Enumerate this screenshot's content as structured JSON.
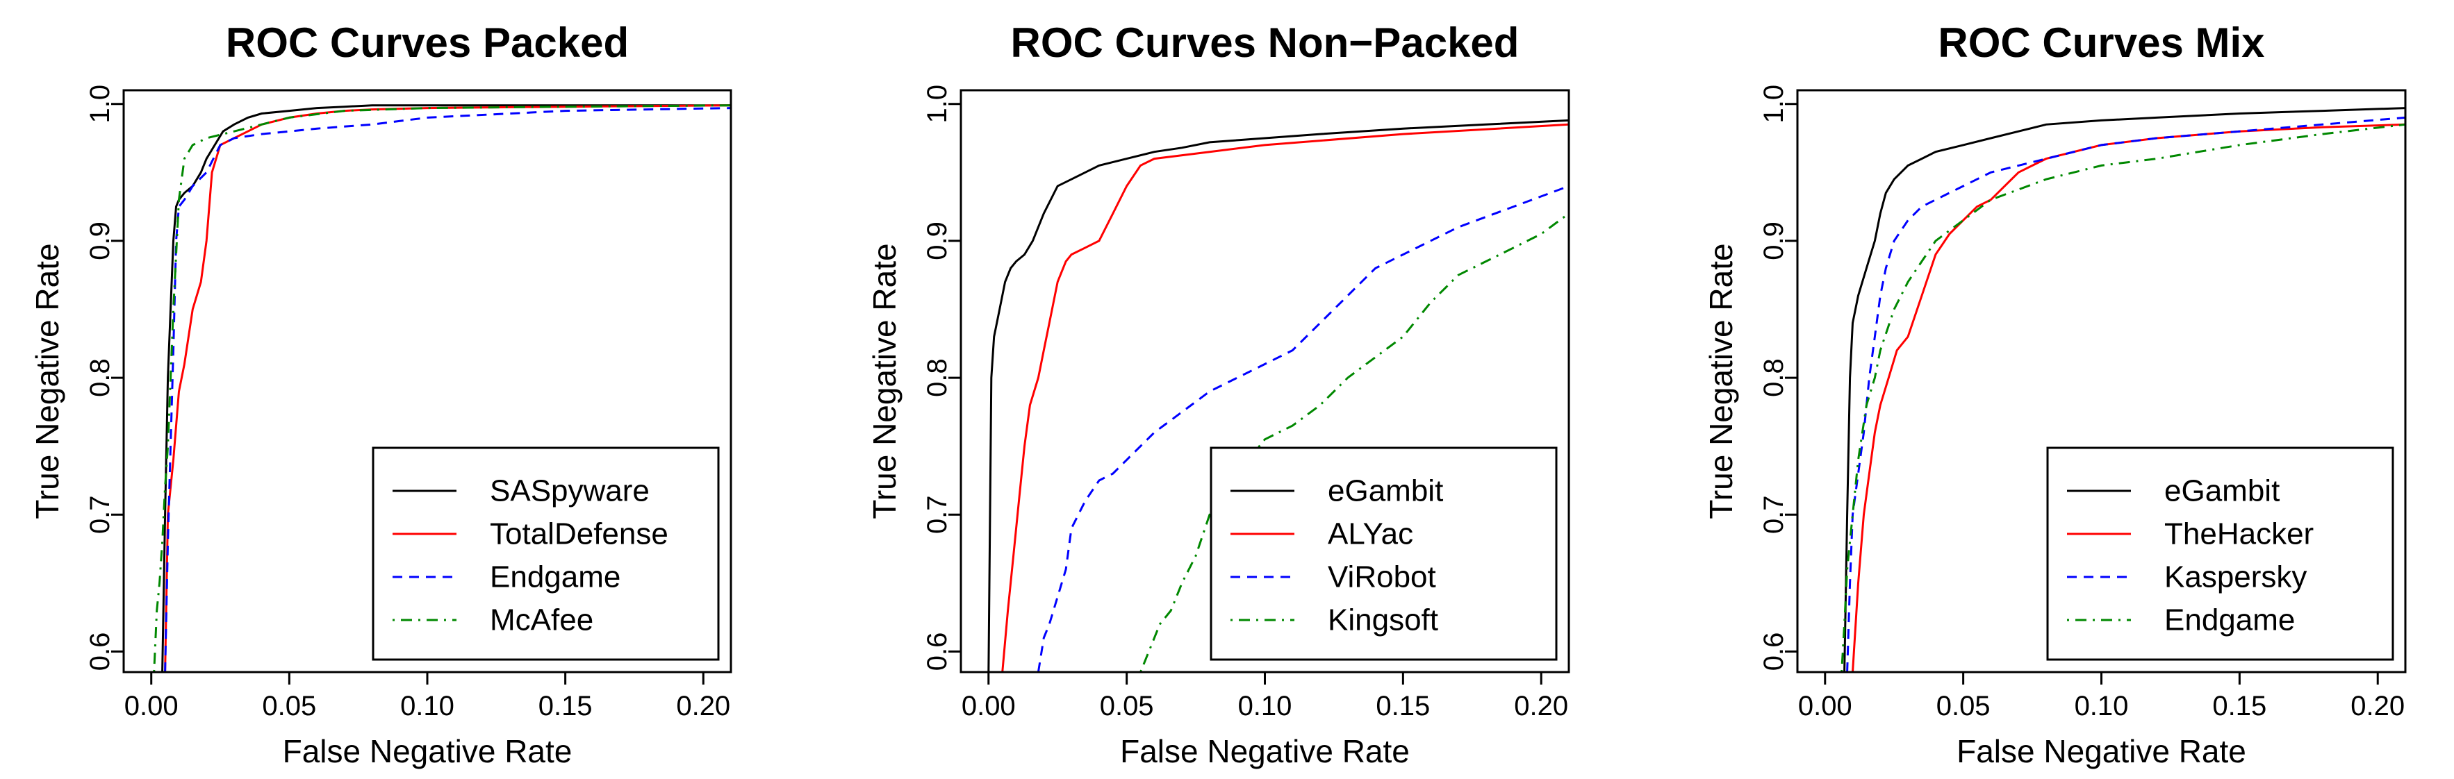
{
  "chart_data": [
    {
      "type": "line",
      "title": "ROC Curves Packed",
      "xlabel": "False Negative Rate",
      "ylabel": "True Negative Rate",
      "xlim": [
        -0.01,
        0.21
      ],
      "ylim": [
        0.585,
        1.01
      ],
      "xticks": [
        0.0,
        0.05,
        0.1,
        0.15,
        0.2
      ],
      "xtick_labels": [
        "0.00",
        "0.05",
        "0.10",
        "0.15",
        "0.20"
      ],
      "yticks": [
        0.6,
        0.7,
        0.8,
        0.9,
        1.0
      ],
      "ytick_labels": [
        "0.6",
        "0.7",
        "0.8",
        "0.9",
        "1.0"
      ],
      "legend_position": "bottom-right",
      "series": [
        {
          "name": "SASpyware",
          "color": "#000000",
          "dash": "solid",
          "x": [
            0.004,
            0.005,
            0.006,
            0.007,
            0.008,
            0.009,
            0.01,
            0.012,
            0.015,
            0.018,
            0.02,
            0.023,
            0.026,
            0.03,
            0.035,
            0.04,
            0.05,
            0.06,
            0.07,
            0.08,
            0.1,
            0.15,
            0.21
          ],
          "y": [
            0.585,
            0.7,
            0.8,
            0.85,
            0.9,
            0.925,
            0.93,
            0.935,
            0.94,
            0.95,
            0.96,
            0.97,
            0.98,
            0.985,
            0.99,
            0.993,
            0.995,
            0.997,
            0.998,
            0.999,
            0.999,
            0.999,
            0.999
          ]
        },
        {
          "name": "TotalDefense",
          "color": "#ff0000",
          "dash": "solid",
          "x": [
            0.005,
            0.006,
            0.008,
            0.01,
            0.012,
            0.015,
            0.018,
            0.02,
            0.022,
            0.025,
            0.03,
            0.035,
            0.04,
            0.05,
            0.06,
            0.07,
            0.08,
            0.1,
            0.15,
            0.21
          ],
          "y": [
            0.585,
            0.7,
            0.74,
            0.79,
            0.81,
            0.85,
            0.87,
            0.9,
            0.95,
            0.97,
            0.975,
            0.98,
            0.985,
            0.99,
            0.993,
            0.995,
            0.996,
            0.997,
            0.998,
            0.999
          ]
        },
        {
          "name": "Endgame",
          "color": "#0000ff",
          "dash": "dashed",
          "x": [
            0.005,
            0.006,
            0.007,
            0.008,
            0.009,
            0.01,
            0.012,
            0.015,
            0.02,
            0.025,
            0.03,
            0.04,
            0.05,
            0.06,
            0.08,
            0.1,
            0.15,
            0.21
          ],
          "y": [
            0.585,
            0.68,
            0.75,
            0.82,
            0.9,
            0.925,
            0.93,
            0.94,
            0.95,
            0.97,
            0.975,
            0.978,
            0.98,
            0.982,
            0.985,
            0.99,
            0.995,
            0.997
          ]
        },
        {
          "name": "McAfee",
          "color": "#008800",
          "dash": "dotdash",
          "x": [
            0.001,
            0.002,
            0.003,
            0.004,
            0.005,
            0.006,
            0.008,
            0.01,
            0.012,
            0.015,
            0.02,
            0.03,
            0.04,
            0.05,
            0.07,
            0.1,
            0.15,
            0.21
          ],
          "y": [
            0.585,
            0.63,
            0.65,
            0.68,
            0.72,
            0.75,
            0.85,
            0.93,
            0.96,
            0.97,
            0.975,
            0.98,
            0.985,
            0.99,
            0.995,
            0.997,
            0.998,
            0.999
          ]
        }
      ]
    },
    {
      "type": "line",
      "title": "ROC Curves Non−Packed",
      "xlabel": "False Negative Rate",
      "ylabel": "True Negative Rate",
      "xlim": [
        -0.01,
        0.21
      ],
      "ylim": [
        0.585,
        1.01
      ],
      "xticks": [
        0.0,
        0.05,
        0.1,
        0.15,
        0.2
      ],
      "xtick_labels": [
        "0.00",
        "0.05",
        "0.10",
        "0.15",
        "0.20"
      ],
      "yticks": [
        0.6,
        0.7,
        0.8,
        0.9,
        1.0
      ],
      "ytick_labels": [
        "0.6",
        "0.7",
        "0.8",
        "0.9",
        "1.0"
      ],
      "legend_position": "bottom-right",
      "series": [
        {
          "name": "eGambit",
          "color": "#000000",
          "dash": "solid",
          "x": [
            0.0,
            0.001,
            0.002,
            0.004,
            0.006,
            0.008,
            0.01,
            0.013,
            0.016,
            0.02,
            0.025,
            0.03,
            0.035,
            0.04,
            0.05,
            0.06,
            0.07,
            0.08,
            0.1,
            0.12,
            0.15,
            0.18,
            0.21
          ],
          "y": [
            0.585,
            0.8,
            0.83,
            0.85,
            0.87,
            0.88,
            0.885,
            0.89,
            0.9,
            0.92,
            0.94,
            0.945,
            0.95,
            0.955,
            0.96,
            0.965,
            0.968,
            0.972,
            0.975,
            0.978,
            0.982,
            0.985,
            0.988
          ]
        },
        {
          "name": "ALYac",
          "color": "#ff0000",
          "dash": "solid",
          "x": [
            0.005,
            0.007,
            0.009,
            0.011,
            0.013,
            0.015,
            0.018,
            0.02,
            0.022,
            0.025,
            0.028,
            0.03,
            0.035,
            0.04,
            0.045,
            0.05,
            0.055,
            0.06,
            0.08,
            0.1,
            0.15,
            0.21
          ],
          "y": [
            0.585,
            0.63,
            0.67,
            0.71,
            0.75,
            0.78,
            0.8,
            0.82,
            0.84,
            0.87,
            0.885,
            0.89,
            0.895,
            0.9,
            0.92,
            0.94,
            0.955,
            0.96,
            0.965,
            0.97,
            0.978,
            0.985
          ]
        },
        {
          "name": "ViRobot",
          "color": "#0000ff",
          "dash": "dashed",
          "x": [
            0.018,
            0.02,
            0.022,
            0.025,
            0.028,
            0.03,
            0.035,
            0.04,
            0.045,
            0.05,
            0.06,
            0.07,
            0.08,
            0.09,
            0.1,
            0.11,
            0.12,
            0.13,
            0.14,
            0.15,
            0.17,
            0.19,
            0.21
          ],
          "y": [
            0.585,
            0.61,
            0.62,
            0.64,
            0.66,
            0.69,
            0.71,
            0.725,
            0.73,
            0.74,
            0.76,
            0.775,
            0.79,
            0.8,
            0.81,
            0.82,
            0.84,
            0.86,
            0.88,
            0.89,
            0.91,
            0.925,
            0.94
          ]
        },
        {
          "name": "Kingsoft",
          "color": "#008800",
          "dash": "dotdash",
          "x": [
            0.055,
            0.058,
            0.062,
            0.066,
            0.07,
            0.075,
            0.08,
            0.085,
            0.09,
            0.1,
            0.11,
            0.12,
            0.13,
            0.14,
            0.15,
            0.16,
            0.17,
            0.18,
            0.19,
            0.2,
            0.21
          ],
          "y": [
            0.585,
            0.6,
            0.62,
            0.63,
            0.65,
            0.67,
            0.7,
            0.72,
            0.73,
            0.755,
            0.765,
            0.78,
            0.8,
            0.815,
            0.83,
            0.855,
            0.875,
            0.885,
            0.895,
            0.905,
            0.92
          ]
        }
      ]
    },
    {
      "type": "line",
      "title": "ROC Curves Mix",
      "xlabel": "False Negative Rate",
      "ylabel": "True Negative Rate",
      "xlim": [
        -0.01,
        0.21
      ],
      "ylim": [
        0.585,
        1.01
      ],
      "xticks": [
        0.0,
        0.05,
        0.1,
        0.15,
        0.2
      ],
      "xtick_labels": [
        "0.00",
        "0.05",
        "0.10",
        "0.15",
        "0.20"
      ],
      "yticks": [
        0.6,
        0.7,
        0.8,
        0.9,
        1.0
      ],
      "ytick_labels": [
        "0.6",
        "0.7",
        "0.8",
        "0.9",
        "1.0"
      ],
      "legend_position": "bottom-right",
      "series": [
        {
          "name": "eGambit",
          "color": "#000000",
          "dash": "solid",
          "x": [
            0.007,
            0.008,
            0.009,
            0.01,
            0.012,
            0.015,
            0.018,
            0.02,
            0.022,
            0.025,
            0.03,
            0.035,
            0.04,
            0.05,
            0.06,
            0.07,
            0.08,
            0.1,
            0.12,
            0.15,
            0.18,
            0.21
          ],
          "y": [
            0.585,
            0.7,
            0.8,
            0.84,
            0.86,
            0.88,
            0.9,
            0.92,
            0.935,
            0.945,
            0.955,
            0.96,
            0.965,
            0.97,
            0.975,
            0.98,
            0.985,
            0.988,
            0.99,
            0.993,
            0.995,
            0.997
          ]
        },
        {
          "name": "TheHacker",
          "color": "#ff0000",
          "dash": "solid",
          "x": [
            0.01,
            0.012,
            0.014,
            0.016,
            0.018,
            0.02,
            0.023,
            0.026,
            0.03,
            0.035,
            0.04,
            0.045,
            0.05,
            0.055,
            0.06,
            0.07,
            0.08,
            0.1,
            0.12,
            0.15,
            0.18,
            0.21
          ],
          "y": [
            0.585,
            0.65,
            0.7,
            0.73,
            0.76,
            0.78,
            0.8,
            0.82,
            0.83,
            0.86,
            0.89,
            0.905,
            0.915,
            0.925,
            0.93,
            0.95,
            0.96,
            0.97,
            0.975,
            0.98,
            0.983,
            0.985
          ]
        },
        {
          "name": "Kaspersky",
          "color": "#0000ff",
          "dash": "dashed",
          "x": [
            0.008,
            0.009,
            0.01,
            0.012,
            0.014,
            0.016,
            0.018,
            0.02,
            0.022,
            0.025,
            0.03,
            0.035,
            0.04,
            0.05,
            0.06,
            0.08,
            0.1,
            0.12,
            0.15,
            0.18,
            0.21
          ],
          "y": [
            0.585,
            0.65,
            0.7,
            0.73,
            0.76,
            0.8,
            0.83,
            0.86,
            0.88,
            0.9,
            0.915,
            0.925,
            0.93,
            0.94,
            0.95,
            0.96,
            0.97,
            0.975,
            0.98,
            0.985,
            0.99
          ]
        },
        {
          "name": "Endgame",
          "color": "#008800",
          "dash": "dotdash",
          "x": [
            0.006,
            0.007,
            0.008,
            0.01,
            0.012,
            0.015,
            0.018,
            0.02,
            0.025,
            0.03,
            0.04,
            0.05,
            0.06,
            0.08,
            0.1,
            0.12,
            0.15,
            0.18,
            0.21
          ],
          "y": [
            0.585,
            0.62,
            0.66,
            0.7,
            0.74,
            0.78,
            0.8,
            0.82,
            0.85,
            0.87,
            0.9,
            0.915,
            0.93,
            0.945,
            0.955,
            0.96,
            0.97,
            0.978,
            0.985
          ]
        }
      ]
    }
  ]
}
